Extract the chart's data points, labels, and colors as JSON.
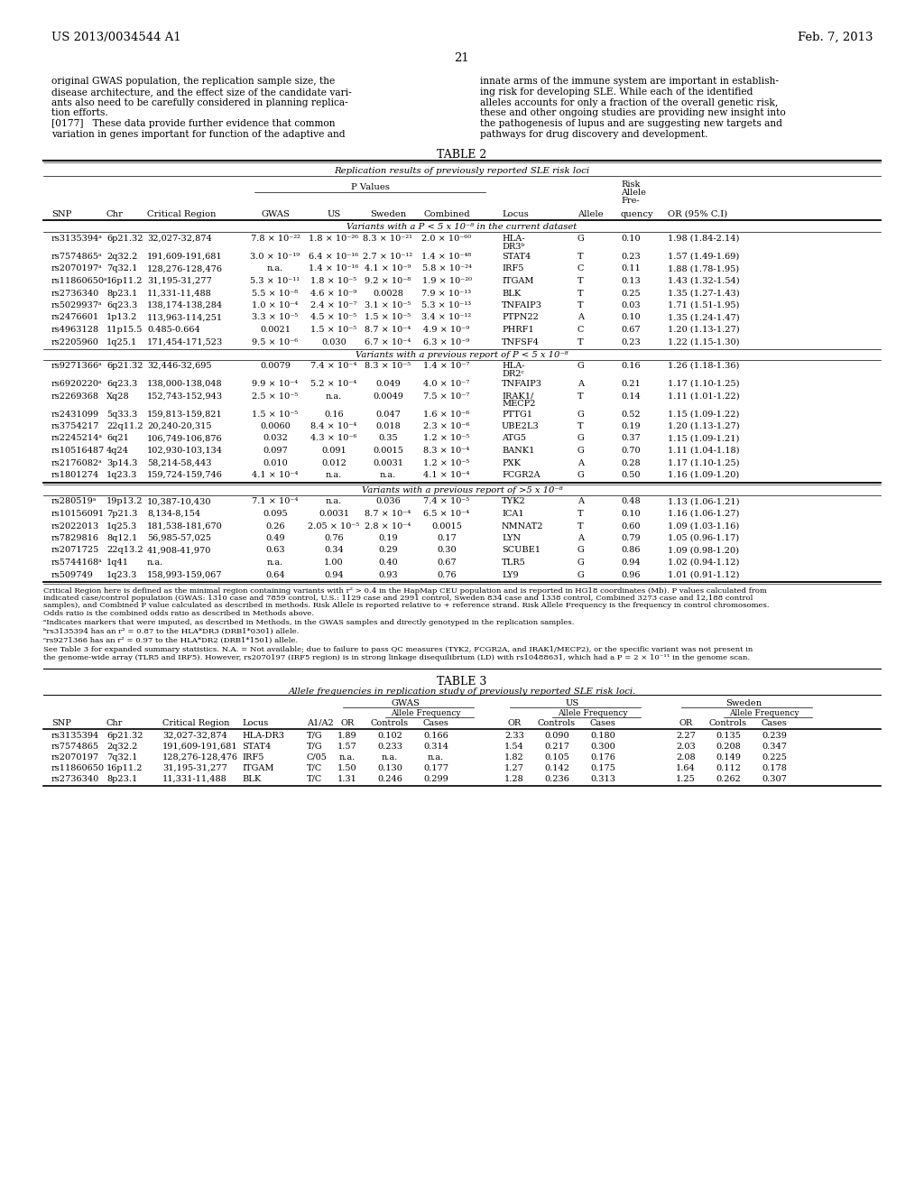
{
  "header_left": "US 2013/0034544 A1",
  "header_right": "Feb. 7, 2013",
  "page_number": "21",
  "left_lines": [
    "original GWAS population, the replication sample size, the",
    "disease architecture, and the effect size of the candidate vari-",
    "ants also need to be carefully considered in planning replica-",
    "tion efforts.",
    "[0177]   These data provide further evidence that common",
    "variation in genes important for function of the adaptive and"
  ],
  "right_lines": [
    "innate arms of the immune system are important in establish-",
    "ing risk for developing SLE. While each of the identified",
    "alleles accounts for only a fraction of the overall genetic risk,",
    "these and other ongoing studies are providing new insight into",
    "the pathogenesis of lupus and are suggesting new targets and",
    "pathways for drug discovery and development."
  ],
  "table2_title": "TABLE 2",
  "table2_subtitle": "Replication results of previously reported SLE risk loci",
  "table2_rows_s1": [
    [
      "rs3135394ᵃ",
      "6p21.32",
      "32,027-32,874",
      "7.8 × 10⁻²²",
      "1.8 × 10⁻²⁶",
      "8.3 × 10⁻²¹",
      "2.0 × 10⁻⁶⁰",
      "HLA-\nDR3ᵇ",
      "G",
      "0.10",
      "1.98 (1.84-2.14)"
    ],
    [
      "rs7574865ᵃ",
      "2q32.2",
      "191,609-191,681",
      "3.0 × 10⁻¹⁹",
      "6.4 × 10⁻¹⁶",
      "2.7 × 10⁻¹²",
      "1.4 × 10⁻⁴⁸",
      "STAT4",
      "T",
      "0.23",
      "1.57 (1.49-1.69)"
    ],
    [
      "rs2070197ᵃ",
      "7q32.1",
      "128,276-128,476",
      "n.a.",
      "1.4 × 10⁻¹⁶",
      "4.1 × 10⁻⁹",
      "5.8 × 10⁻²⁴",
      "IRF5",
      "C",
      "0.11",
      "1.88 (1.78-1.95)"
    ],
    [
      "rs11860650ᵃ",
      "16p11.2",
      "31,195-31,277",
      "5.3 × 10⁻¹¹",
      "1.8 × 10⁻⁵",
      "9.2 × 10⁻⁸",
      "1.9 × 10⁻²⁰",
      "ITGAM",
      "T",
      "0.13",
      "1.43 (1.32-1.54)"
    ],
    [
      "rs2736340",
      "8p23.1",
      "11,331-11,488",
      "5.5 × 10⁻⁸",
      "4.6 × 10⁻⁹",
      "0.0028",
      "7.9 × 10⁻¹³",
      "BLK",
      "T",
      "0.25",
      "1.35 (1.27-1.43)"
    ],
    [
      "rs5029937ᵃ",
      "6q23.3",
      "138,174-138,284",
      "1.0 × 10⁻⁴",
      "2.4 × 10⁻⁷",
      "3.1 × 10⁻⁵",
      "5.3 × 10⁻¹³",
      "TNFAIP3",
      "T",
      "0.03",
      "1.71 (1.51-1.95)"
    ],
    [
      "rs2476601",
      "1p13.2",
      "113,963-114,251",
      "3.3 × 10⁻⁵",
      "4.5 × 10⁻⁵",
      "1.5 × 10⁻⁵",
      "3.4 × 10⁻¹²",
      "PTPN22",
      "A",
      "0.10",
      "1.35 (1.24-1.47)"
    ],
    [
      "rs4963128",
      "11p15.5",
      "0.485-0.664",
      "0.0021",
      "1.5 × 10⁻⁵",
      "8.7 × 10⁻⁴",
      "4.9 × 10⁻⁹",
      "PHRF1",
      "C",
      "0.67",
      "1.20 (1.13-1.27)"
    ],
    [
      "rs2205960",
      "1q25.1",
      "171,454-171,523",
      "9.5 × 10⁻⁶",
      "0.030",
      "6.7 × 10⁻⁴",
      "6.3 × 10⁻⁹",
      "TNFSF4",
      "T",
      "0.23",
      "1.22 (1.15-1.30)"
    ]
  ],
  "table2_rows_s2": [
    [
      "rs9271366ᵃ",
      "6p21.32",
      "32,446-32,695",
      "0.0079",
      "7.4 × 10⁻⁴",
      "8.3 × 10⁻⁵",
      "1.4 × 10⁻⁷",
      "HLA-\nDR2ᶜ",
      "G",
      "0.16",
      "1.26 (1.18-1.36)"
    ],
    [
      "rs6920220ᵃ",
      "6q23.3",
      "138,000-138,048",
      "9.9 × 10⁻⁴",
      "5.2 × 10⁻⁴",
      "0.049",
      "4.0 × 10⁻⁷",
      "TNFAIP3",
      "A",
      "0.21",
      "1.17 (1.10-1.25)"
    ],
    [
      "rs2269368",
      "Xq28",
      "152,743-152,943",
      "2.5 × 10⁻⁵",
      "n.a.",
      "0.0049",
      "7.5 × 10⁻⁷",
      "IRAK1/\nMECP2",
      "T",
      "0.14",
      "1.11 (1.01-1.22)"
    ],
    [
      "rs2431099",
      "5q33.3",
      "159,813-159,821",
      "1.5 × 10⁻⁵",
      "0.16",
      "0.047",
      "1.6 × 10⁻⁶",
      "PTTG1",
      "G",
      "0.52",
      "1.15 (1.09-1.22)"
    ],
    [
      "rs3754217",
      "22q11.2",
      "20,240-20,315",
      "0.0060",
      "8.4 × 10⁻⁴",
      "0.018",
      "2.3 × 10⁻⁶",
      "UBE2L3",
      "T",
      "0.19",
      "1.20 (1.13-1.27)"
    ],
    [
      "rs2245214ᵃ",
      "6q21",
      "106,749-106,876",
      "0.032",
      "4.3 × 10⁻⁶",
      "0.35",
      "1.2 × 10⁻⁵",
      "ATG5",
      "G",
      "0.37",
      "1.15 (1.09-1.21)"
    ],
    [
      "rs10516487",
      "4q24",
      "102,930-103,134",
      "0.097",
      "0.091",
      "0.0015",
      "8.3 × 10⁻⁴",
      "BANK1",
      "G",
      "0.70",
      "1.11 (1.04-1.18)"
    ],
    [
      "rs2176082ᵃ",
      "3p14.3",
      "58,214-58,443",
      "0.010",
      "0.012",
      "0.0031",
      "1.2 × 10⁻⁵",
      "PXK",
      "A",
      "0.28",
      "1.17 (1.10-1.25)"
    ],
    [
      "rs1801274",
      "1q23.3",
      "159,724-159,746",
      "4.1 × 10⁻⁴",
      "n.a.",
      "n.a.",
      "4.1 × 10⁻⁴",
      "FCGR2A",
      "G",
      "0.50",
      "1.16 (1.09-1.20)"
    ]
  ],
  "table2_rows_s3": [
    [
      "rs280519ᵃ",
      "19p13.2",
      "10,387-10,430",
      "7.1 × 10⁻⁴",
      "n.a.",
      "0.036",
      "7.4 × 10⁻⁵",
      "TYK2",
      "A",
      "0.48",
      "1.13 (1.06-1.21)"
    ],
    [
      "rs10156091",
      "7p21.3",
      "8,134-8,154",
      "0.095",
      "0.0031",
      "8.7 × 10⁻⁴",
      "6.5 × 10⁻⁴",
      "ICA1",
      "T",
      "0.10",
      "1.16 (1.06-1.27)"
    ],
    [
      "rs2022013",
      "1q25.3",
      "181,538-181,670",
      "0.26",
      "2.05 × 10⁻⁵",
      "2.8 × 10⁻⁴",
      "0.0015",
      "NMNAT2",
      "T",
      "0.60",
      "1.09 (1.03-1.16)"
    ],
    [
      "rs7829816",
      "8q12.1",
      "56,985-57,025",
      "0.49",
      "0.76",
      "0.19",
      "0.17",
      "LYN",
      "A",
      "0.79",
      "1.05 (0.96-1.17)"
    ],
    [
      "rs2071725",
      "22q13.2",
      "41,908-41,970",
      "0.63",
      "0.34",
      "0.29",
      "0.30",
      "SCUBE1",
      "G",
      "0.86",
      "1.09 (0.98-1.20)"
    ],
    [
      "rs5744168ᵃ",
      "1q41",
      "n.a.",
      "n.a.",
      "1.00",
      "0.40",
      "0.67",
      "TLR5",
      "G",
      "0.94",
      "1.02 (0.94-1.12)"
    ],
    [
      "rs509749",
      "1q23.3",
      "158,993-159,067",
      "0.64",
      "0.94",
      "0.93",
      "0.76",
      "LY9",
      "G",
      "0.96",
      "1.01 (0.91-1.12)"
    ]
  ],
  "footnote_main": "Critical Region here is defined as the minimal region containing variants with r² > 0.4 in the HapMap CEU population and is reported in HG18 coordinates (Mb). P values calculated from indicated case/control population (GWAS: 1310 case and 7859 control, U.S.: 1129 case and 2991 control, Sweden 834 case and 1338 control, Combined 3273 case and 12,188 control samples), and Combined P value calculated as described in methods. Risk Allele is reported relative to + reference strand. Risk Allele Frequency is the frequency in control chromosomes. Odds ratio is the combined odds ratio as described in Methods above.",
  "footnote_a": "ᵃIndicates markers that were imputed, as described in Methods, in the GWAS samples and directly genotyped in the replication samples.",
  "footnote_b": "ᵇrs3135394 has an r² = 0.87 to the HLA*DR3 (DRB1*0301) allele.",
  "footnote_c": "ᶜrs9271366 has an r² = 0.97 to the HLA*DR2 (DRB1*1501) allele.",
  "footnote_see1": "See Table 3 for expanded summary statistics. N.A. = Not available; due to failure to pass QC measures (TYK2, FCGR2A, and IRAK1/MECP2), or the specific variant was not present in",
  "footnote_see2": "the genome-wide array (TLR5 and IRF5). However, rs2070197 (IRF5 region) is in strong linkage disequilibrium (LD) with rs10488631, which had a P = 2 × 10⁻¹¹ in the genome scan.",
  "table3_title": "TABLE 3",
  "table3_subtitle": "Allele frequencies in replication study of previously reported SLE risk loci.",
  "table3_rows": [
    [
      "rs3135394",
      "6p21.32",
      "32,027-32,874",
      "HLA-DR3",
      "T/G",
      "1.89",
      "0.102",
      "0.166",
      "2.33",
      "0.090",
      "0.180",
      "2.27",
      "0.135",
      "0.239"
    ],
    [
      "rs7574865",
      "2q32.2",
      "191,609-191,681",
      "STAT4",
      "T/G",
      "1.57",
      "0.233",
      "0.314",
      "1.54",
      "0.217",
      "0.300",
      "2.03",
      "0.208",
      "0.347"
    ],
    [
      "rs2070197",
      "7q32.1",
      "128,276-128,476",
      "IRF5",
      "C/05",
      "n.a.",
      "n.a.",
      "n.a.",
      "1.82",
      "0.105",
      "0.176",
      "2.08",
      "0.149",
      "0.225"
    ],
    [
      "rs11860650",
      "16p11.2",
      "31,195-31,277",
      "ITGAM",
      "T/C",
      "1.50",
      "0.130",
      "0.177",
      "1.27",
      "0.142",
      "0.175",
      "1.64",
      "0.112",
      "0.178"
    ],
    [
      "rs2736340",
      "8p23.1",
      "11,331-11,488",
      "BLK",
      "T/C",
      "1.31",
      "0.246",
      "0.299",
      "1.28",
      "0.236",
      "0.313",
      "1.25",
      "0.262",
      "0.307"
    ]
  ]
}
